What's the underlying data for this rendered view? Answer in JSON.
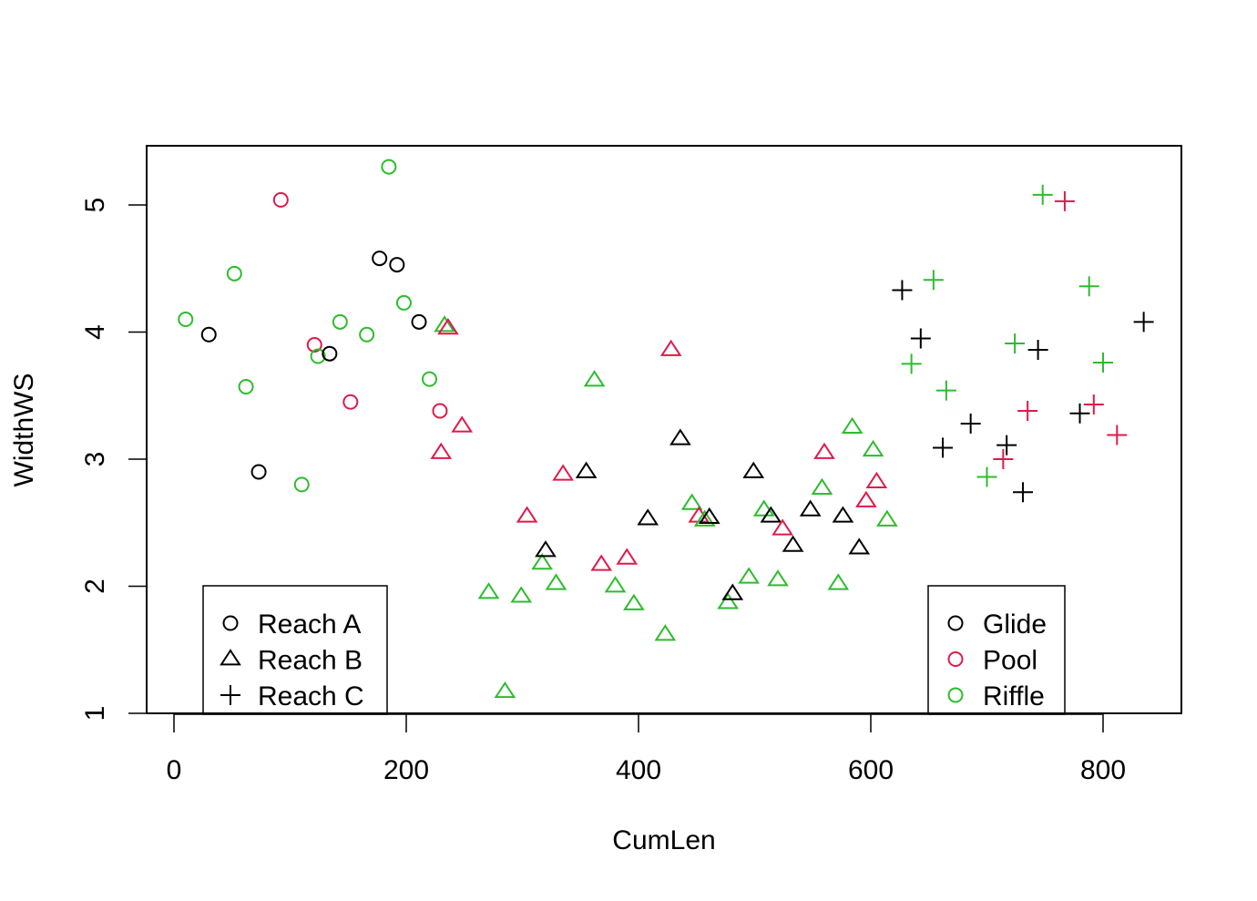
{
  "chart_data": {
    "type": "scatter",
    "title": "",
    "xlabel": "CumLen",
    "ylabel": "WidthWS",
    "xlim": [
      -22,
      868
    ],
    "ylim": [
      1,
      5.47
    ],
    "x_ticks": [
      0,
      200,
      400,
      600,
      800
    ],
    "y_ticks": [
      1,
      2,
      3,
      4,
      5
    ],
    "grid": false,
    "colors": {
      "Glide": "#000000",
      "Pool": "#DF1A4A",
      "Riffle": "#2DBC2D"
    },
    "shapes": {
      "Reach A": "circle",
      "Reach B": "triangle",
      "Reach C": "plus"
    },
    "legends": [
      {
        "position": "bottom-left",
        "title": "reach",
        "entries": [
          {
            "label": "Reach A",
            "shape": "circle",
            "color": "#000000"
          },
          {
            "label": "Reach B",
            "shape": "triangle",
            "color": "#000000"
          },
          {
            "label": "Reach C",
            "shape": "plus",
            "color": "#000000"
          }
        ]
      },
      {
        "position": "bottom-right",
        "title": "habitat",
        "entries": [
          {
            "label": "Glide",
            "shape": "circle",
            "color": "#000000"
          },
          {
            "label": "Pool",
            "shape": "circle",
            "color": "#DF1A4A"
          },
          {
            "label": "Riffle",
            "shape": "circle",
            "color": "#2DBC2D"
          }
        ]
      }
    ],
    "points": [
      {
        "x": 10,
        "y": 4.1,
        "reach": "Reach A",
        "habitat": "Riffle"
      },
      {
        "x": 30,
        "y": 3.98,
        "reach": "Reach A",
        "habitat": "Glide"
      },
      {
        "x": 52,
        "y": 4.46,
        "reach": "Reach A",
        "habitat": "Riffle"
      },
      {
        "x": 62,
        "y": 3.57,
        "reach": "Reach A",
        "habitat": "Riffle"
      },
      {
        "x": 73,
        "y": 2.9,
        "reach": "Reach A",
        "habitat": "Glide"
      },
      {
        "x": 92,
        "y": 5.04,
        "reach": "Reach A",
        "habitat": "Pool"
      },
      {
        "x": 110,
        "y": 2.8,
        "reach": "Reach A",
        "habitat": "Riffle"
      },
      {
        "x": 121,
        "y": 3.9,
        "reach": "Reach A",
        "habitat": "Pool"
      },
      {
        "x": 124,
        "y": 3.81,
        "reach": "Reach A",
        "habitat": "Riffle"
      },
      {
        "x": 134,
        "y": 3.83,
        "reach": "Reach A",
        "habitat": "Glide"
      },
      {
        "x": 143,
        "y": 4.08,
        "reach": "Reach A",
        "habitat": "Riffle"
      },
      {
        "x": 152,
        "y": 3.45,
        "reach": "Reach A",
        "habitat": "Pool"
      },
      {
        "x": 166,
        "y": 3.98,
        "reach": "Reach A",
        "habitat": "Riffle"
      },
      {
        "x": 177,
        "y": 4.58,
        "reach": "Reach A",
        "habitat": "Glide"
      },
      {
        "x": 185,
        "y": 5.3,
        "reach": "Reach A",
        "habitat": "Riffle"
      },
      {
        "x": 192,
        "y": 4.53,
        "reach": "Reach A",
        "habitat": "Glide"
      },
      {
        "x": 198,
        "y": 4.23,
        "reach": "Reach A",
        "habitat": "Riffle"
      },
      {
        "x": 211,
        "y": 4.08,
        "reach": "Reach A",
        "habitat": "Glide"
      },
      {
        "x": 220,
        "y": 3.63,
        "reach": "Reach A",
        "habitat": "Riffle"
      },
      {
        "x": 229,
        "y": 3.38,
        "reach": "Reach A",
        "habitat": "Pool"
      },
      {
        "x": 230,
        "y": 3.05,
        "reach": "Reach B",
        "habitat": "Pool"
      },
      {
        "x": 233,
        "y": 4.05,
        "reach": "Reach B",
        "habitat": "Riffle"
      },
      {
        "x": 236,
        "y": 4.03,
        "reach": "Reach B",
        "habitat": "Pool"
      },
      {
        "x": 248,
        "y": 3.26,
        "reach": "Reach B",
        "habitat": "Pool"
      },
      {
        "x": 271,
        "y": 1.95,
        "reach": "Reach B",
        "habitat": "Riffle"
      },
      {
        "x": 285,
        "y": 1.17,
        "reach": "Reach B",
        "habitat": "Riffle"
      },
      {
        "x": 299,
        "y": 1.92,
        "reach": "Reach B",
        "habitat": "Riffle"
      },
      {
        "x": 304,
        "y": 2.55,
        "reach": "Reach B",
        "habitat": "Pool"
      },
      {
        "x": 317,
        "y": 2.18,
        "reach": "Reach B",
        "habitat": "Riffle"
      },
      {
        "x": 320,
        "y": 2.28,
        "reach": "Reach B",
        "habitat": "Glide"
      },
      {
        "x": 329,
        "y": 2.02,
        "reach": "Reach B",
        "habitat": "Riffle"
      },
      {
        "x": 335,
        "y": 2.88,
        "reach": "Reach B",
        "habitat": "Pool"
      },
      {
        "x": 355,
        "y": 2.9,
        "reach": "Reach B",
        "habitat": "Glide"
      },
      {
        "x": 362,
        "y": 3.62,
        "reach": "Reach B",
        "habitat": "Riffle"
      },
      {
        "x": 368,
        "y": 2.17,
        "reach": "Reach B",
        "habitat": "Pool"
      },
      {
        "x": 380,
        "y": 2.0,
        "reach": "Reach B",
        "habitat": "Riffle"
      },
      {
        "x": 390,
        "y": 2.22,
        "reach": "Reach B",
        "habitat": "Pool"
      },
      {
        "x": 396,
        "y": 1.86,
        "reach": "Reach B",
        "habitat": "Riffle"
      },
      {
        "x": 408,
        "y": 2.53,
        "reach": "Reach B",
        "habitat": "Glide"
      },
      {
        "x": 423,
        "y": 1.62,
        "reach": "Reach B",
        "habitat": "Riffle"
      },
      {
        "x": 428,
        "y": 3.86,
        "reach": "Reach B",
        "habitat": "Pool"
      },
      {
        "x": 436,
        "y": 3.16,
        "reach": "Reach B",
        "habitat": "Glide"
      },
      {
        "x": 446,
        "y": 2.65,
        "reach": "Reach B",
        "habitat": "Riffle"
      },
      {
        "x": 452,
        "y": 2.55,
        "reach": "Reach B",
        "habitat": "Pool"
      },
      {
        "x": 457,
        "y": 2.52,
        "reach": "Reach B",
        "habitat": "Riffle"
      },
      {
        "x": 461,
        "y": 2.54,
        "reach": "Reach B",
        "habitat": "Glide"
      },
      {
        "x": 477,
        "y": 1.87,
        "reach": "Reach B",
        "habitat": "Riffle"
      },
      {
        "x": 481,
        "y": 1.94,
        "reach": "Reach B",
        "habitat": "Glide"
      },
      {
        "x": 495,
        "y": 2.07,
        "reach": "Reach B",
        "habitat": "Riffle"
      },
      {
        "x": 499,
        "y": 2.9,
        "reach": "Reach B",
        "habitat": "Glide"
      },
      {
        "x": 508,
        "y": 2.6,
        "reach": "Reach B",
        "habitat": "Riffle"
      },
      {
        "x": 514,
        "y": 2.55,
        "reach": "Reach B",
        "habitat": "Glide"
      },
      {
        "x": 520,
        "y": 2.05,
        "reach": "Reach B",
        "habitat": "Riffle"
      },
      {
        "x": 524,
        "y": 2.45,
        "reach": "Reach B",
        "habitat": "Pool"
      },
      {
        "x": 533,
        "y": 2.32,
        "reach": "Reach B",
        "habitat": "Glide"
      },
      {
        "x": 548,
        "y": 2.6,
        "reach": "Reach B",
        "habitat": "Glide"
      },
      {
        "x": 558,
        "y": 2.77,
        "reach": "Reach B",
        "habitat": "Riffle"
      },
      {
        "x": 560,
        "y": 3.05,
        "reach": "Reach B",
        "habitat": "Pool"
      },
      {
        "x": 572,
        "y": 2.02,
        "reach": "Reach B",
        "habitat": "Riffle"
      },
      {
        "x": 576,
        "y": 2.55,
        "reach": "Reach B",
        "habitat": "Glide"
      },
      {
        "x": 584,
        "y": 3.25,
        "reach": "Reach B",
        "habitat": "Riffle"
      },
      {
        "x": 590,
        "y": 2.3,
        "reach": "Reach B",
        "habitat": "Glide"
      },
      {
        "x": 596,
        "y": 2.67,
        "reach": "Reach B",
        "habitat": "Pool"
      },
      {
        "x": 602,
        "y": 3.07,
        "reach": "Reach B",
        "habitat": "Riffle"
      },
      {
        "x": 605,
        "y": 2.82,
        "reach": "Reach B",
        "habitat": "Pool"
      },
      {
        "x": 614,
        "y": 2.52,
        "reach": "Reach B",
        "habitat": "Riffle"
      },
      {
        "x": 627,
        "y": 4.33,
        "reach": "Reach C",
        "habitat": "Glide"
      },
      {
        "x": 635,
        "y": 3.75,
        "reach": "Reach C",
        "habitat": "Riffle"
      },
      {
        "x": 643,
        "y": 3.95,
        "reach": "Reach C",
        "habitat": "Glide"
      },
      {
        "x": 654,
        "y": 4.41,
        "reach": "Reach C",
        "habitat": "Riffle"
      },
      {
        "x": 662,
        "y": 3.09,
        "reach": "Reach C",
        "habitat": "Glide"
      },
      {
        "x": 665,
        "y": 3.54,
        "reach": "Reach C",
        "habitat": "Riffle"
      },
      {
        "x": 686,
        "y": 3.28,
        "reach": "Reach C",
        "habitat": "Glide"
      },
      {
        "x": 700,
        "y": 2.86,
        "reach": "Reach C",
        "habitat": "Riffle"
      },
      {
        "x": 714,
        "y": 3.0,
        "reach": "Reach C",
        "habitat": "Pool"
      },
      {
        "x": 717,
        "y": 3.11,
        "reach": "Reach C",
        "habitat": "Glide"
      },
      {
        "x": 724,
        "y": 3.91,
        "reach": "Reach C",
        "habitat": "Riffle"
      },
      {
        "x": 731,
        "y": 2.74,
        "reach": "Reach C",
        "habitat": "Glide"
      },
      {
        "x": 735,
        "y": 3.38,
        "reach": "Reach C",
        "habitat": "Pool"
      },
      {
        "x": 744,
        "y": 3.86,
        "reach": "Reach C",
        "habitat": "Glide"
      },
      {
        "x": 748,
        "y": 5.08,
        "reach": "Reach C",
        "habitat": "Riffle"
      },
      {
        "x": 767,
        "y": 5.03,
        "reach": "Reach C",
        "habitat": "Pool"
      },
      {
        "x": 780,
        "y": 3.36,
        "reach": "Reach C",
        "habitat": "Glide"
      },
      {
        "x": 788,
        "y": 4.36,
        "reach": "Reach C",
        "habitat": "Riffle"
      },
      {
        "x": 792,
        "y": 3.43,
        "reach": "Reach C",
        "habitat": "Pool"
      },
      {
        "x": 800,
        "y": 3.76,
        "reach": "Reach C",
        "habitat": "Riffle"
      },
      {
        "x": 812,
        "y": 3.19,
        "reach": "Reach C",
        "habitat": "Pool"
      },
      {
        "x": 835,
        "y": 4.08,
        "reach": "Reach C",
        "habitat": "Glide"
      }
    ]
  }
}
